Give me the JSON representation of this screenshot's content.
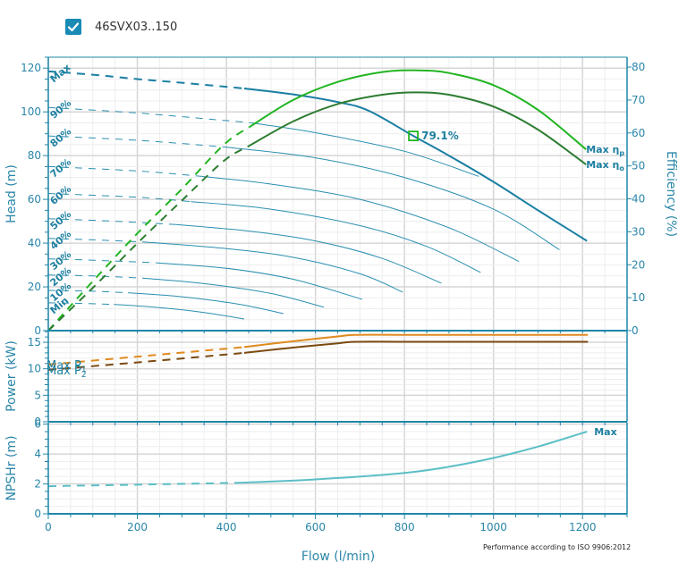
{
  "header": {
    "checkbox_checked": true,
    "pump_name": "46SVX03..150"
  },
  "colors": {
    "axis": "#1f87aa",
    "grid_major": "#d6d6d6",
    "grid_minor": "#eeeeee",
    "head": "#1a7fa3",
    "speed_curves": "#2a8fb0",
    "eff_pump": "#22b522",
    "eff_overall": "#2e7d32",
    "power_p1": "#e08a1e",
    "power_p2": "#7a4a10",
    "npsh": "#5bbfc6",
    "bep_marker": "#22b522"
  },
  "footer_note": "Performance according to ISO 9906:2012",
  "chart_data": {
    "type": "line",
    "x_axis": {
      "label": "Flow (l/min)",
      "range": [
        0,
        1300
      ],
      "ticks": [
        0,
        200,
        400,
        600,
        800,
        1000,
        1200
      ],
      "tick_labels": [
        "0",
        "200",
        "400",
        "600",
        "800",
        "1000",
        "1200"
      ]
    },
    "panels": [
      {
        "name": "head",
        "ylabel": "Head (m)",
        "ylim": [
          0,
          125
        ],
        "yticks": [
          0,
          20,
          40,
          60,
          80,
          100,
          120
        ],
        "y2label": "Efficiency (%)",
        "y2lim": [
          0,
          83
        ],
        "y2ticks": [
          0,
          10,
          20,
          30,
          40,
          50,
          60,
          70,
          80
        ],
        "series": [
          {
            "name": "Max",
            "kind": "head",
            "label": "Max",
            "dashed_until": 440,
            "x": [
              0,
              100,
              200,
              300,
              440,
              550,
              650,
              720,
              820,
              900,
              1000,
              1100,
              1210
            ],
            "y": [
              118.5,
              117.0,
              115.0,
              113.3,
              110.7,
              108.0,
              104.5,
              100.5,
              89.0,
              80.0,
              68.0,
              55.0,
              41.0
            ]
          },
          {
            "name": "90%",
            "kind": "speed",
            "label": "90%",
            "dashed_until": 455,
            "x": [
              0,
              200,
              455,
              600,
              800,
              967
            ],
            "y": [
              102.0,
              99.5,
              95.0,
              90.5,
              82.0,
              70.5
            ]
          },
          {
            "name": "80%",
            "kind": "speed",
            "label": "80%",
            "dashed_until": 394,
            "x": [
              0,
              200,
              394,
              600,
              800,
              1000,
              1148
            ],
            "y": [
              89.0,
              87.0,
              84.0,
              79.0,
              70.0,
              55.5,
              37.0
            ]
          },
          {
            "name": "70%",
            "kind": "speed",
            "label": "70%",
            "dashed_until": 345,
            "x": [
              0,
              200,
              345,
              500,
              700,
              900,
              1057
            ],
            "y": [
              75.0,
              73.0,
              70.5,
              67.0,
              60.0,
              47.0,
              31.6
            ]
          },
          {
            "name": "60%",
            "kind": "speed",
            "label": "60%",
            "dashed_until": 320,
            "x": [
              0,
              200,
              320,
              500,
              700,
              850,
              971
            ],
            "y": [
              62.7,
              61.0,
              59.0,
              55.5,
              48.0,
              38.5,
              26.6
            ]
          },
          {
            "name": "50%",
            "kind": "speed",
            "label": "50%",
            "dashed_until": 287,
            "x": [
              0,
              150,
              287,
              450,
              600,
              750,
              883
            ],
            "y": [
              51.2,
              50.0,
              48.5,
              45.5,
              41.0,
              33.0,
              21.7
            ]
          },
          {
            "name": "40%",
            "kind": "speed",
            "label": "40%",
            "dashed_until": 217,
            "x": [
              0,
              100,
              217,
              400,
              550,
              700,
              796
            ],
            "y": [
              42.2,
              41.5,
              40.5,
              37.5,
              33.5,
              26.0,
              17.6
            ]
          },
          {
            "name": "30%",
            "kind": "speed",
            "label": "30%",
            "dashed_until": 243,
            "x": [
              0,
              100,
              243,
              400,
              550,
              705
            ],
            "y": [
              32.8,
              32.2,
              31.0,
              28.5,
              23.5,
              14.3
            ]
          },
          {
            "name": "20%",
            "kind": "speed",
            "label": "20%",
            "dashed_until": 213,
            "x": [
              0,
              100,
              213,
              350,
              500,
              619
            ],
            "y": [
              25.4,
              25.0,
              24.0,
              21.5,
              17.0,
              10.7
            ]
          },
          {
            "name": "10%",
            "kind": "speed",
            "label": "10%",
            "dashed_until": 179,
            "x": [
              0,
              100,
              179,
              300,
              430,
              528
            ],
            "y": [
              18.4,
              18.0,
              17.3,
              15.5,
              12.0,
              7.8
            ]
          },
          {
            "name": "Min",
            "kind": "speed",
            "label": "Min",
            "dashed_until": 147,
            "x": [
              0,
              80,
              147,
              250,
              350,
              440
            ],
            "y": [
              12.7,
              12.4,
              12.0,
              10.5,
              8.3,
              5.3
            ]
          },
          {
            "name": "Max ηp",
            "kind": "eff_pump",
            "axis": "y2",
            "label": "Max  η",
            "label_sub": "p",
            "dashed_until": 454,
            "x": [
              0,
              100,
              200,
              300,
              394,
              454,
              550,
              650,
              750,
              826,
              900,
              1000,
              1100,
              1208
            ],
            "y": [
              0,
              15.0,
              29.5,
              43.0,
              56.4,
              62.0,
              70.0,
              75.5,
              78.5,
              79.0,
              78.2,
              74.5,
              67.0,
              55.0
            ]
          },
          {
            "name": "Max ηo",
            "kind": "eff_overall",
            "axis": "y2",
            "label": "Max  η",
            "label_sub": "o",
            "dashed_until": 450,
            "x": [
              0,
              100,
              200,
              300,
              394,
              450,
              550,
              650,
              750,
              826,
              900,
              1000,
              1100,
              1208
            ],
            "y": [
              0,
              13.0,
              26.5,
              39.5,
              51.5,
              56.0,
              63.5,
              68.8,
              71.6,
              72.3,
              71.6,
              68.0,
              61.0,
              50.4
            ]
          }
        ],
        "annotations": [
          {
            "text": "79.1%",
            "x": 820,
            "y": 89.0,
            "marker": "square"
          }
        ]
      },
      {
        "name": "power",
        "ylabel": "Power (kW)",
        "ylim": [
          0,
          17.2
        ],
        "yticks": [
          0,
          5,
          10,
          15
        ],
        "series": [
          {
            "name": "Max P1",
            "kind": "power_p1",
            "label": "Max P",
            "label_sub": "1",
            "dashed_until": 440,
            "x": [
              0,
              200,
              440,
              550,
              650,
              690,
              800,
              1000,
              1212
            ],
            "y": [
              10.8,
              12.3,
              14.1,
              15.2,
              16.1,
              16.4,
              16.4,
              16.4,
              16.4
            ]
          },
          {
            "name": "Max P2",
            "kind": "power_p2",
            "label": "Max P",
            "label_sub": "2",
            "dashed_until": 440,
            "x": [
              0,
              200,
              440,
              550,
              650,
              690,
              800,
              1000,
              1212
            ],
            "y": [
              9.8,
              11.2,
              13.0,
              14.0,
              14.8,
              15.1,
              15.1,
              15.1,
              15.1
            ]
          }
        ]
      },
      {
        "name": "npsh",
        "ylabel": "NPSHr (m)",
        "ylim": [
          0,
          6.1
        ],
        "yticks": [
          0,
          2,
          4,
          6
        ],
        "series": [
          {
            "name": "Max",
            "kind": "npsh",
            "label": "Max",
            "dashed_until": 434,
            "x": [
              0,
              200,
              434,
              600,
              800,
              900,
              1000,
              1100,
              1210
            ],
            "y": [
              1.85,
              1.95,
              2.08,
              2.3,
              2.74,
              3.15,
              3.74,
              4.5,
              5.5
            ]
          }
        ]
      }
    ]
  }
}
